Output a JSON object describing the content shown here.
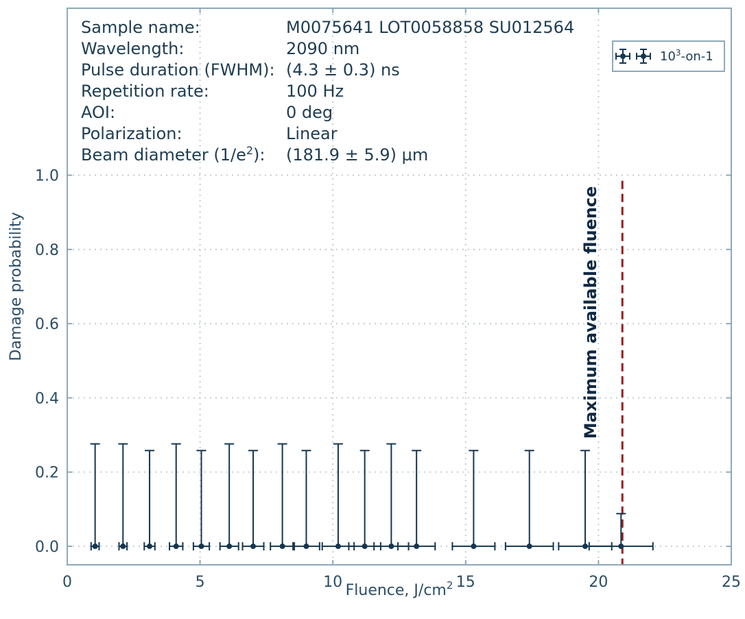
{
  "info": [
    {
      "key": "Sample name:",
      "value": "M0075641 LOT0058858  SU012564"
    },
    {
      "key": "Wavelength:",
      "value": "2090 nm"
    },
    {
      "key": "Pulse duration (FWHM):",
      "value": "(4.3 ± 0.3) ns"
    },
    {
      "key": "Repetition rate:",
      "value": "100 Hz"
    },
    {
      "key": "AOI:",
      "value": "0 deg"
    },
    {
      "key": "Polarization:",
      "value": "Linear"
    },
    {
      "key": "Beam diameter (1/e",
      "key_sup": "2",
      "key_end": "):",
      "value": "(181.9 ± 5.9) µm"
    }
  ],
  "colors": {
    "series": "#153650",
    "axis": "#8fa9b8",
    "grid": "#c3cdd3",
    "threshold": "#9b1c1c",
    "text": "#1f3d52"
  },
  "chart_data": {
    "type": "scatter",
    "xlabel": "Fluence, J/cm",
    "xlabel_sup": "2",
    "ylabel": "Damage probability",
    "xlim": [
      0,
      25
    ],
    "ylim": [
      -0.05,
      1.45
    ],
    "xticks": [
      0,
      5,
      10,
      15,
      20,
      25
    ],
    "yticks": [
      0.0,
      0.2,
      0.4,
      0.6,
      0.8,
      1.0
    ],
    "xtick_labels": [
      "0",
      "5",
      "10",
      "15",
      "20",
      "25"
    ],
    "ytick_labels": [
      "0.0",
      "0.2",
      "0.4",
      "0.6",
      "0.8",
      "1.0"
    ],
    "grid": true,
    "legend": {
      "label": "10",
      "label_sup": "3",
      "label_end": "-on-1",
      "placement": "top-right"
    },
    "series": [
      {
        "name": "10^3-on-1",
        "x": [
          1.05,
          2.1,
          3.1,
          4.1,
          5.05,
          6.1,
          7.0,
          8.1,
          9.0,
          10.2,
          11.2,
          12.2,
          13.15,
          15.3,
          17.4,
          19.5,
          20.85
        ],
        "xerr": [
          0.15,
          0.15,
          0.2,
          0.25,
          0.3,
          0.35,
          0.4,
          0.45,
          0.5,
          0.6,
          0.6,
          0.65,
          0.7,
          0.8,
          0.9,
          1.0,
          1.2
        ],
        "y": [
          0,
          0,
          0,
          0,
          0,
          0,
          0,
          0,
          0,
          0,
          0,
          0,
          0,
          0,
          0,
          0,
          0
        ],
        "yerr_upper": [
          0.276,
          0.276,
          0.258,
          0.276,
          0.258,
          0.276,
          0.258,
          0.276,
          0.258,
          0.276,
          0.258,
          0.276,
          0.258,
          0.258,
          0.258,
          0.258,
          0.088
        ],
        "yerr_lower": [
          0,
          0,
          0,
          0,
          0,
          0,
          0,
          0,
          0,
          0,
          0,
          0,
          0,
          0,
          0,
          0,
          0
        ]
      }
    ],
    "threshold_line": {
      "x": 20.9,
      "label": "Maximum available fluence"
    }
  }
}
